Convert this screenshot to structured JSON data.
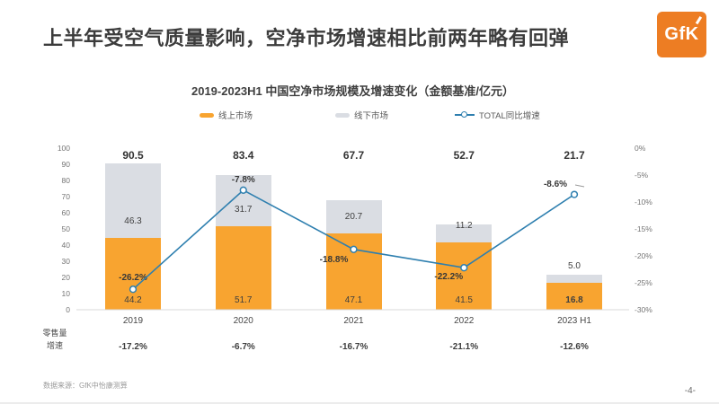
{
  "header": {
    "title": "上半年受空气质量影响，空净市场增速相比前两年略有回弹",
    "logo_text": "GfK"
  },
  "chart_data": {
    "type": "combo-stacked-bar-line",
    "title": "2019-2023H1 中国空净市场规模及增速变化（金额基准/亿元）",
    "categories": [
      "2019",
      "2020",
      "2021",
      "2022",
      "2023 H1"
    ],
    "series": [
      {
        "name": "线上市场",
        "type": "bar",
        "stack": "market",
        "color": "#F8A430",
        "values": [
          44.2,
          51.7,
          47.1,
          41.5,
          16.8
        ]
      },
      {
        "name": "线下市场",
        "type": "bar",
        "stack": "market",
        "color": "#DADDE3",
        "values": [
          46.3,
          31.7,
          20.7,
          11.2,
          5.0
        ]
      },
      {
        "name": "TOTAL同比增速",
        "type": "line",
        "axis": "right",
        "color": "#2E7FAF",
        "values_pct": [
          -26.2,
          -7.8,
          -18.8,
          -22.2,
          -8.6
        ]
      }
    ],
    "totals": [
      90.5,
      83.4,
      67.7,
      52.7,
      21.7
    ],
    "left_axis": {
      "min": 0,
      "max": 100,
      "step": 10
    },
    "right_axis": {
      "min": -30,
      "max": 0,
      "step": 5,
      "format": "percent"
    },
    "legend_position": "top",
    "grid": "off",
    "bottom_row": {
      "label_lines": [
        "零售量",
        "增速"
      ],
      "values": [
        "-17.2%",
        "-6.7%",
        "-16.7%",
        "-21.1%",
        "-12.6%"
      ]
    }
  },
  "footer": {
    "source": "数据来源：GfK中怡康测算",
    "page": "-4-"
  }
}
